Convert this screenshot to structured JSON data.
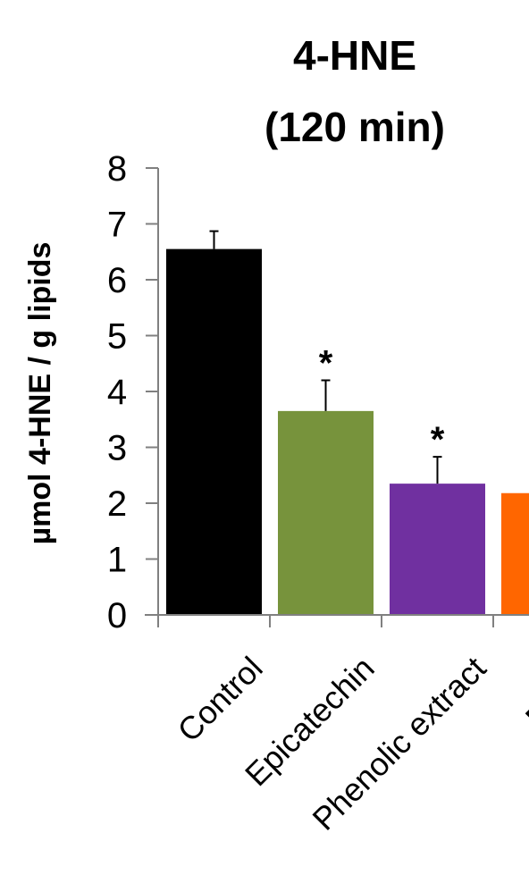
{
  "chart_data": {
    "type": "bar",
    "title_line1": "4-HNE",
    "title_line2": "(120 min)",
    "ylabel": "µmol 4-HNE / g lipids",
    "xlabel": "",
    "ylim": [
      0,
      8
    ],
    "yticks": [
      "0",
      "1",
      "2",
      "3",
      "4",
      "5",
      "6",
      "7",
      "8"
    ],
    "categories": [
      "Control",
      "Epicatechin",
      "Phenolic extract",
      "Puree"
    ],
    "values": [
      6.55,
      3.65,
      2.35,
      2.18
    ],
    "errors": [
      0.32,
      0.55,
      0.48,
      null
    ],
    "significance": [
      "",
      "*",
      "*",
      ""
    ],
    "colors": [
      "#000000",
      "#77933c",
      "#7030a0",
      "#ff6600"
    ],
    "grid": false,
    "legend": "none"
  }
}
